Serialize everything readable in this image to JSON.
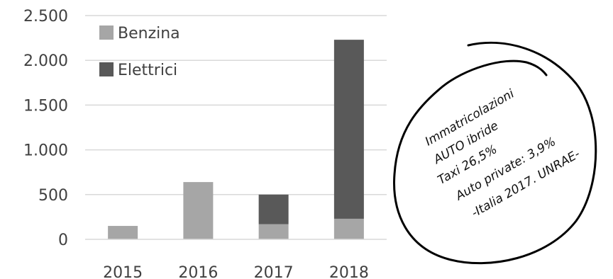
{
  "chart_data": {
    "type": "bar",
    "stacked": true,
    "categories": [
      "2015",
      "2016",
      "2017",
      "2018"
    ],
    "series": [
      {
        "name": "Benzina",
        "color": "#a6a6a6",
        "values": [
          150,
          640,
          170,
          230
        ]
      },
      {
        "name": "Elettrici",
        "color": "#595959",
        "values": [
          0,
          0,
          330,
          2000
        ]
      }
    ],
    "ylim": [
      0,
      2500
    ],
    "yticks": [
      0,
      500,
      1000,
      1500,
      2000,
      2500
    ],
    "ytick_labels": [
      "0",
      "500",
      "1.000",
      "1.500",
      "2.000",
      "2.500"
    ],
    "grid": true,
    "legend_position": "top-left",
    "title": "",
    "xlabel": "",
    "ylabel": ""
  },
  "annotation": {
    "lines": [
      "Immatricolazioni",
      "AUTO ibride",
      "Taxi 26,5%",
      "Auto private: 3,9%",
      "-Italia 2017. UNRAE-"
    ]
  }
}
